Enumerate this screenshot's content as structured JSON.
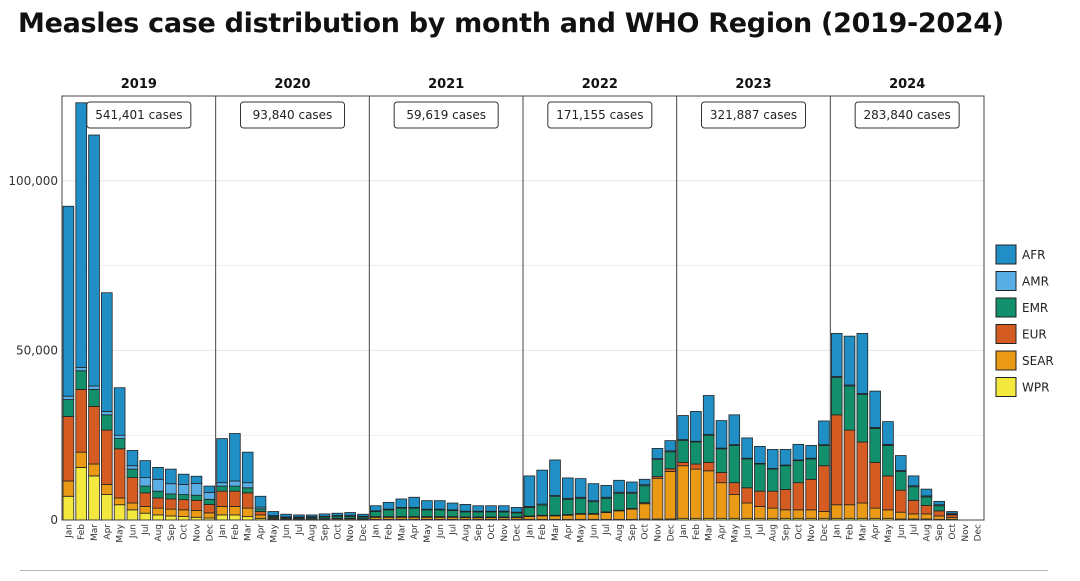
{
  "title": "Measles case distribution by month and WHO Region (2019-2024)",
  "colors": {
    "AFR": "#1f8fc6",
    "AMR": "#5aaee6",
    "EMR": "#12906b",
    "EUR": "#d45c22",
    "SEAR": "#eb9a16",
    "WPR": "#f2e83e",
    "grid": "#e6e6e6",
    "border": "#444444",
    "text": "#222222"
  },
  "chart_data": {
    "type": "bar",
    "stacked": true,
    "title": "Measles case distribution by month and WHO Region (2019-2024)",
    "xlabel": "",
    "ylabel": "",
    "ylim": [
      0,
      125000
    ],
    "yticks": [
      0,
      50000,
      100000
    ],
    "ytick_labels": [
      "0",
      "50,000",
      "100,000"
    ],
    "grid": true,
    "legend_position": "right",
    "months": [
      "Jan",
      "Feb",
      "Mar",
      "Apr",
      "May",
      "Jun",
      "Jul",
      "Aug",
      "Sep",
      "Oct",
      "Nov",
      "Dec"
    ],
    "series_names": [
      "WPR",
      "SEAR",
      "EUR",
      "EMR",
      "AMR",
      "AFR"
    ],
    "legend": [
      "AFR",
      "AMR",
      "EMR",
      "EUR",
      "SEAR",
      "WPR"
    ],
    "panels": [
      {
        "year": "2019",
        "total_label": "541,401 cases",
        "series": {
          "WPR": [
            7000,
            15500,
            13000,
            7500,
            4500,
            3000,
            2000,
            1500,
            1200,
            1000,
            800,
            600
          ],
          "SEAR": [
            4500,
            4500,
            3500,
            3000,
            2000,
            2000,
            2000,
            2000,
            2000,
            2000,
            2000,
            1500
          ],
          "EUR": [
            19000,
            18500,
            17000,
            16000,
            14500,
            7500,
            4000,
            3000,
            3000,
            3000,
            3000,
            2500
          ],
          "EMR": [
            5000,
            5500,
            5000,
            4500,
            3000,
            2500,
            2000,
            2000,
            1500,
            1500,
            1500,
            1500
          ],
          "AMR": [
            1000,
            1000,
            1000,
            1000,
            1000,
            1000,
            2500,
            3500,
            3000,
            3000,
            3500,
            2000
          ],
          "AFR": [
            56000,
            78000,
            74000,
            35000,
            14000,
            4500,
            5000,
            3500,
            4300,
            3000,
            2100,
            1900
          ]
        }
      },
      {
        "year": "2020",
        "total_label": "93,840 cases",
        "series": {
          "WPR": [
            1500,
            1500,
            1000,
            500,
            200,
            100,
            100,
            100,
            100,
            100,
            100,
            100
          ],
          "SEAR": [
            2500,
            2500,
            2500,
            1000,
            300,
            200,
            200,
            200,
            200,
            300,
            300,
            200
          ],
          "EUR": [
            4500,
            4500,
            4500,
            1000,
            200,
            100,
            100,
            100,
            100,
            100,
            100,
            100
          ],
          "EMR": [
            1500,
            1500,
            1500,
            800,
            400,
            300,
            300,
            400,
            500,
            600,
            600,
            500
          ],
          "AMR": [
            1000,
            1500,
            1500,
            500,
            200,
            200,
            200,
            200,
            200,
            200,
            300,
            200
          ],
          "AFR": [
            13000,
            14000,
            9000,
            3200,
            1200,
            800,
            600,
            500,
            700,
            700,
            800,
            600
          ]
        }
      },
      {
        "year": "2021",
        "total_label": "59,619 cases",
        "series": {
          "WPR": [
            200,
            200,
            200,
            200,
            200,
            200,
            200,
            200,
            200,
            200,
            200,
            200
          ],
          "SEAR": [
            600,
            600,
            600,
            600,
            600,
            600,
            600,
            500,
            500,
            500,
            500,
            500
          ],
          "EUR": [
            200,
            200,
            200,
            200,
            200,
            200,
            200,
            200,
            200,
            200,
            200,
            200
          ],
          "EMR": [
            1500,
            2000,
            2500,
            2500,
            2000,
            2000,
            1800,
            1500,
            1500,
            1500,
            1500,
            1200
          ],
          "AMR": [
            200,
            200,
            200,
            200,
            200,
            200,
            200,
            200,
            200,
            200,
            200,
            200
          ],
          "AFR": [
            1500,
            2000,
            2500,
            3000,
            2500,
            2500,
            2000,
            2000,
            1600,
            1600,
            1600,
            1400
          ]
        }
      },
      {
        "year": "2022",
        "total_label": "171,155 cases",
        "series": {
          "WPR": [
            200,
            200,
            200,
            200,
            200,
            200,
            200,
            200,
            200,
            300,
            300,
            300
          ],
          "SEAR": [
            800,
            1000,
            1000,
            1200,
            1500,
            1500,
            2000,
            2500,
            3000,
            4500,
            12000,
            14000
          ],
          "EUR": [
            200,
            200,
            200,
            200,
            200,
            200,
            200,
            200,
            200,
            300,
            500,
            800
          ],
          "EMR": [
            2500,
            3000,
            5500,
            4500,
            4500,
            3500,
            4000,
            5000,
            4500,
            5000,
            5000,
            5000
          ],
          "AMR": [
            300,
            300,
            300,
            300,
            300,
            300,
            300,
            300,
            300,
            300,
            300,
            300
          ],
          "AFR": [
            9000,
            10000,
            10500,
            6000,
            5500,
            5000,
            3500,
            3500,
            3000,
            1600,
            3000,
            3000
          ]
        }
      },
      {
        "year": "2023",
        "total_label": "321,887 cases",
        "series": {
          "WPR": [
            500,
            500,
            500,
            500,
            500,
            500,
            500,
            500,
            500,
            500,
            500,
            500
          ],
          "SEAR": [
            15500,
            14500,
            14000,
            10500,
            7000,
            4500,
            3500,
            3000,
            2500,
            2500,
            2500,
            2000
          ],
          "EUR": [
            1000,
            1500,
            2500,
            3000,
            3500,
            4500,
            4500,
            5000,
            6000,
            8000,
            9000,
            13500
          ],
          "EMR": [
            6500,
            6500,
            8000,
            7000,
            11000,
            8500,
            8000,
            6500,
            7000,
            6500,
            6000,
            6000
          ],
          "AMR": [
            200,
            200,
            200,
            200,
            200,
            200,
            200,
            200,
            200,
            200,
            200,
            200
          ],
          "AFR": [
            7100,
            8800,
            11500,
            8100,
            8800,
            6000,
            5000,
            5600,
            4600,
            4600,
            3800,
            7000
          ]
        }
      },
      {
        "year": "2024",
        "total_label": "283,840 cases",
        "series": {
          "WPR": [
            500,
            500,
            500,
            500,
            500,
            300,
            300,
            300,
            200,
            200,
            0,
            0
          ],
          "SEAR": [
            4000,
            4000,
            4500,
            3000,
            2500,
            2000,
            1500,
            1500,
            1000,
            500,
            0,
            0
          ],
          "EUR": [
            26500,
            22000,
            18000,
            13500,
            10000,
            6500,
            4000,
            2500,
            1500,
            800,
            0,
            0
          ],
          "EMR": [
            11000,
            13000,
            14000,
            10000,
            9000,
            5500,
            4000,
            2500,
            1500,
            200,
            0,
            0
          ],
          "AMR": [
            300,
            300,
            300,
            300,
            300,
            300,
            300,
            300,
            300,
            300,
            0,
            0
          ],
          "AFR": [
            12700,
            14400,
            17700,
            10700,
            6700,
            4400,
            2900,
            2000,
            1000,
            500,
            0,
            0
          ]
        }
      }
    ]
  }
}
